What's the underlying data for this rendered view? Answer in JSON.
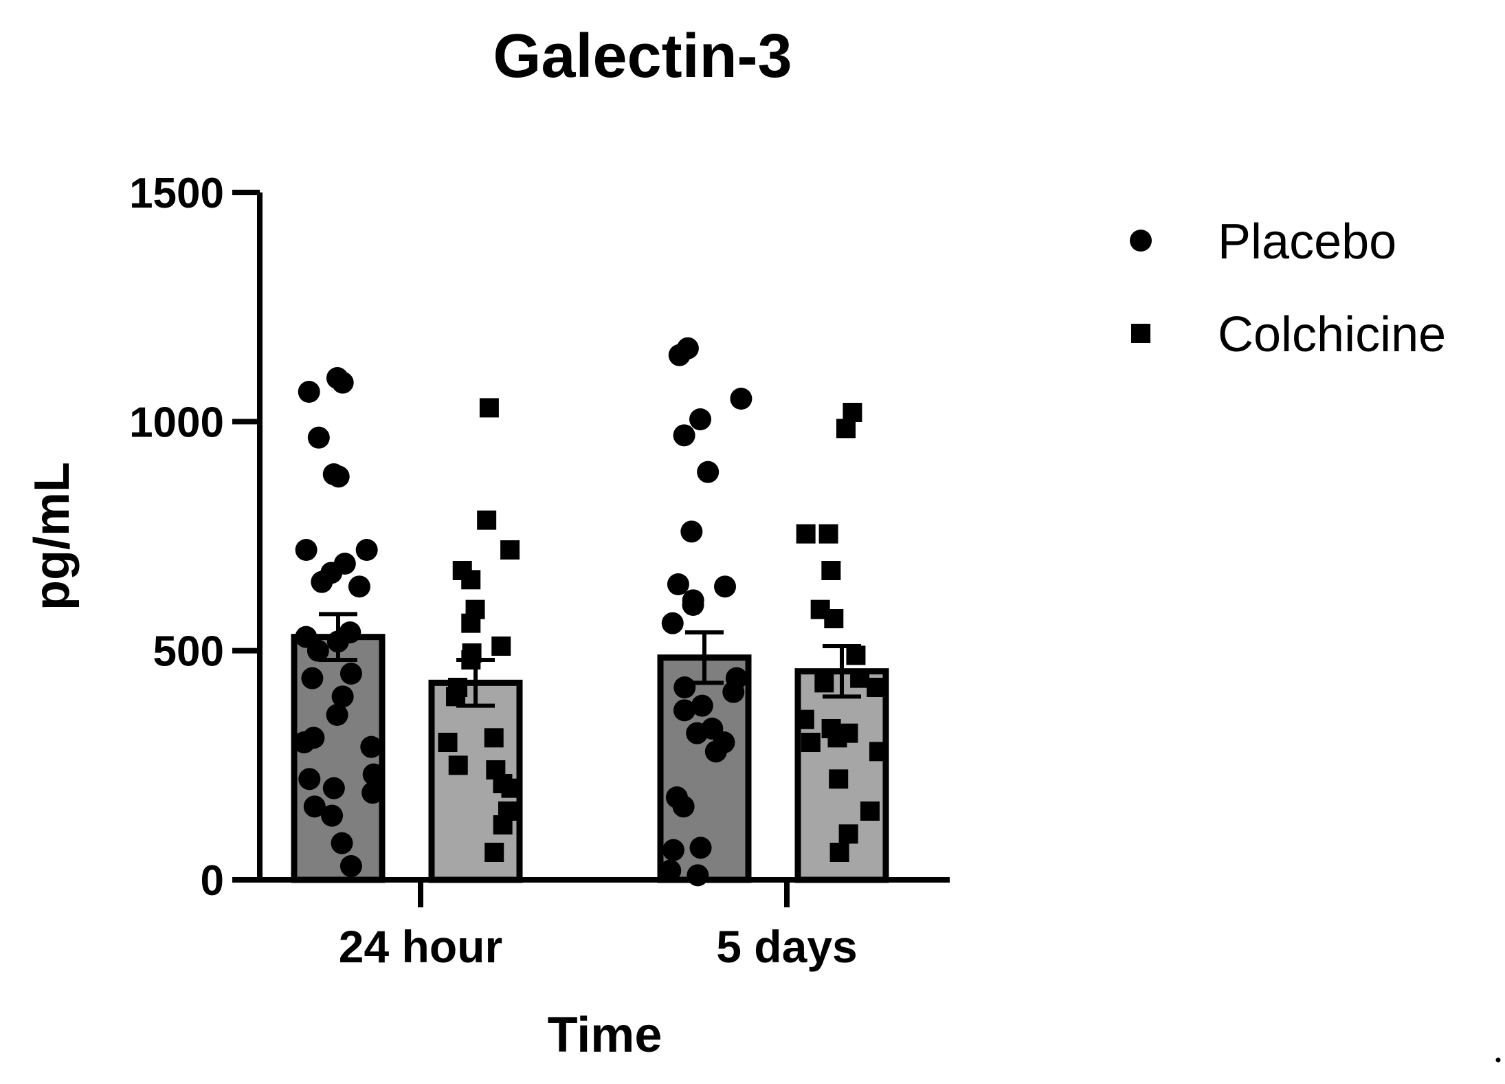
{
  "chart_data": {
    "type": "bar",
    "title": "Galectin-3",
    "xlabel": "Time",
    "ylabel": "pg/mL",
    "ylim": [
      0,
      1500
    ],
    "yticks": [
      "0",
      "500",
      "1000",
      "1500"
    ],
    "categories": [
      "24 hour",
      "5 days"
    ],
    "legend_position": "top-right",
    "series": [
      {
        "name": "Placebo",
        "marker": "circle",
        "bar_color": "#7f7f7f",
        "means": [
          530,
          485
        ],
        "sem": [
          50,
          55
        ],
        "points": [
          [
            1095,
            1085,
            1065,
            965,
            885,
            880,
            720,
            720,
            690,
            670,
            650,
            640,
            540,
            530,
            520,
            500,
            450,
            440,
            400,
            360,
            310,
            300,
            290,
            230,
            220,
            200,
            190,
            160,
            140,
            80,
            30
          ],
          [
            1160,
            1145,
            1050,
            1005,
            970,
            890,
            760,
            645,
            640,
            610,
            600,
            560,
            440,
            420,
            410,
            380,
            370,
            330,
            320,
            300,
            280,
            180,
            160,
            70,
            65,
            20,
            10
          ]
        ]
      },
      {
        "name": "Colchicine",
        "marker": "square",
        "bar_color": "#a6a6a6",
        "means": [
          430,
          455
        ],
        "sem": [
          50,
          55
        ],
        "points": [
          [
            1030,
            785,
            720,
            675,
            655,
            590,
            560,
            510,
            495,
            480,
            420,
            400,
            310,
            300,
            250,
            240,
            210,
            200,
            150,
            120,
            60
          ],
          [
            1020,
            985,
            755,
            755,
            675,
            590,
            570,
            490,
            440,
            430,
            420,
            350,
            330,
            320,
            310,
            300,
            280,
            220,
            150,
            100,
            60
          ]
        ]
      }
    ]
  }
}
